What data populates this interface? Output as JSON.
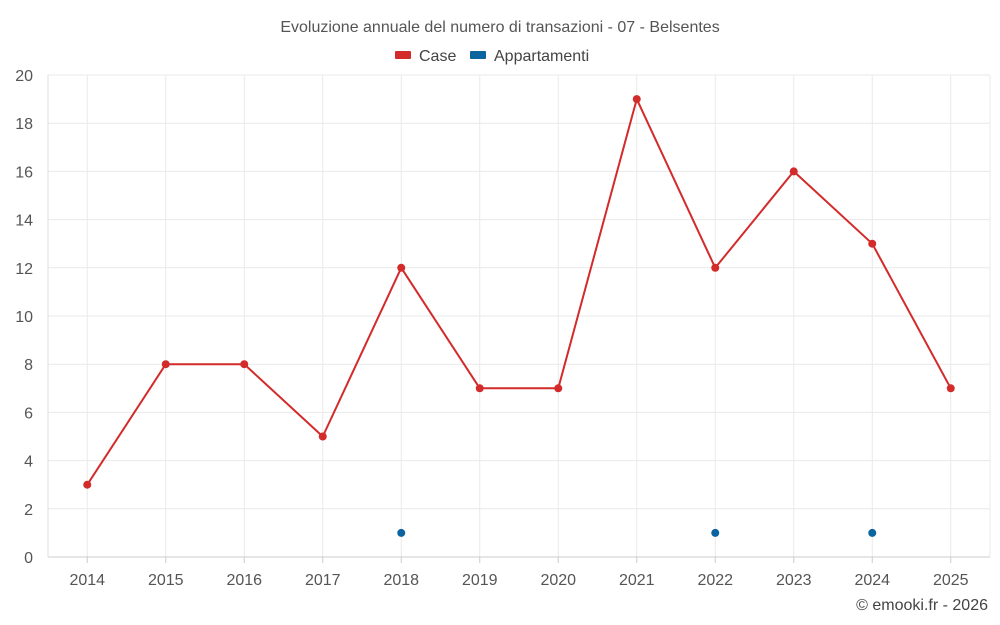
{
  "chart_data": {
    "type": "line",
    "title": "Evoluzione annuale del numero di transazioni - 07 - Belsentes",
    "categories": [
      "2014",
      "2015",
      "2016",
      "2017",
      "2018",
      "2019",
      "2020",
      "2021",
      "2022",
      "2023",
      "2024",
      "2025"
    ],
    "series": [
      {
        "name": "Case",
        "color": "#d32a2a",
        "values": [
          3,
          8,
          8,
          5,
          12,
          7,
          7,
          19,
          12,
          16,
          13,
          7
        ]
      },
      {
        "name": "Appartamenti",
        "color": "#0b64a0",
        "values": [
          null,
          null,
          null,
          null,
          1,
          null,
          null,
          null,
          1,
          null,
          1,
          null
        ]
      }
    ],
    "ylim": [
      0,
      20
    ],
    "yticks": [
      0,
      2,
      4,
      6,
      8,
      10,
      12,
      14,
      16,
      18,
      20
    ],
    "grid": true,
    "legend_position": "top-center",
    "credit": "© emooki.fr - 2026"
  }
}
